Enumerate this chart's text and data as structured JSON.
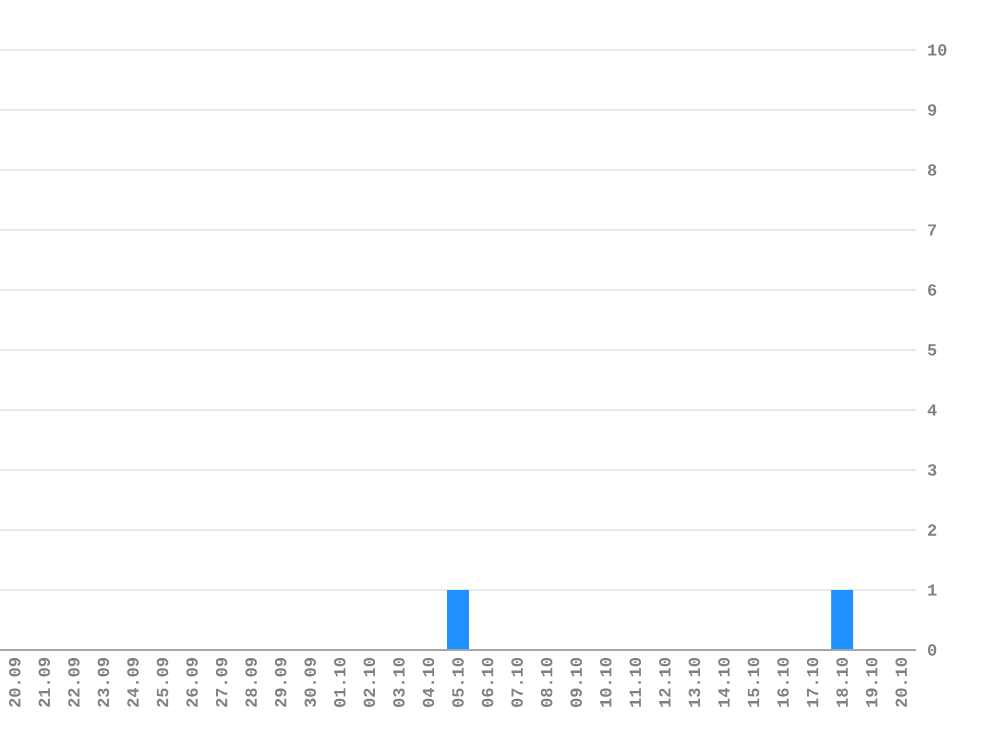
{
  "chart_data": {
    "type": "bar",
    "categories": [
      "20.09",
      "21.09",
      "22.09",
      "23.09",
      "24.09",
      "25.09",
      "26.09",
      "27.09",
      "28.09",
      "29.09",
      "30.09",
      "01.10",
      "02.10",
      "03.10",
      "04.10",
      "05.10",
      "06.10",
      "07.10",
      "08.10",
      "09.10",
      "10.10",
      "11.10",
      "12.10",
      "13.10",
      "14.10",
      "15.10",
      "16.10",
      "17.10",
      "18.10",
      "19.10",
      "20.10"
    ],
    "values": [
      0,
      0,
      0,
      0,
      0,
      0,
      0,
      0,
      0,
      0,
      0,
      0,
      0,
      0,
      0,
      1,
      0,
      0,
      0,
      0,
      0,
      0,
      0,
      0,
      0,
      0,
      0,
      0,
      1,
      0,
      0
    ],
    "color": "#1e90ff",
    "ylim": [
      0,
      10
    ],
    "yticks": [
      0,
      1,
      2,
      3,
      4,
      5,
      6,
      7,
      8,
      9,
      10
    ],
    "grid": "y"
  }
}
